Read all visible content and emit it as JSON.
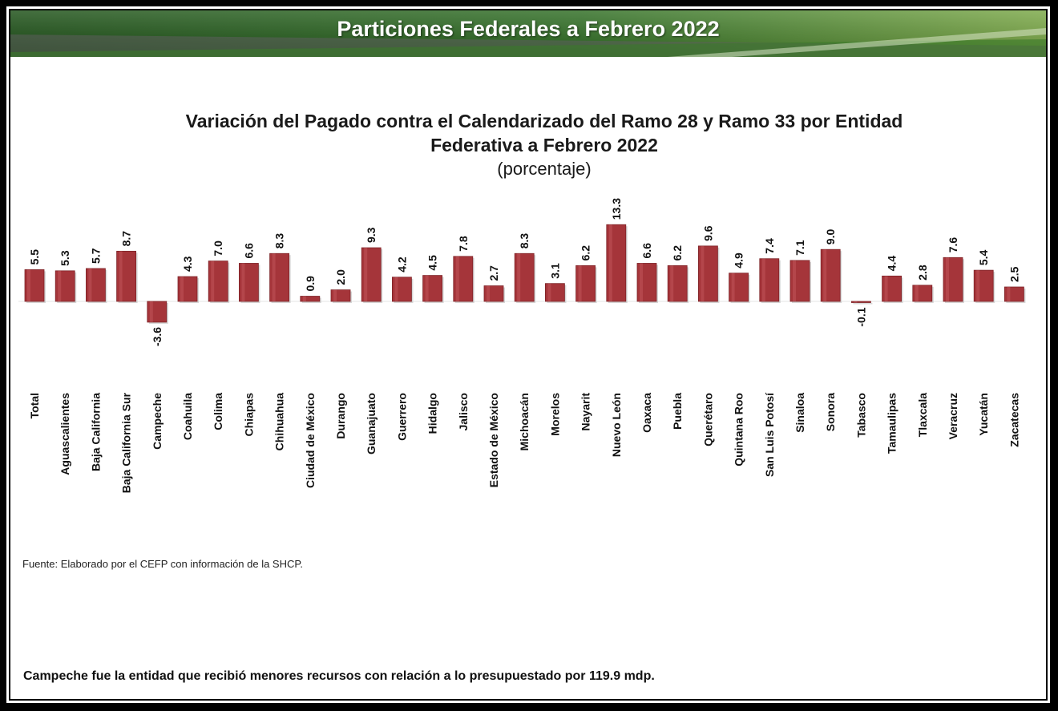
{
  "banner": {
    "title": "Particiones Federales a Febrero 2022",
    "colors": {
      "green_dark": "#1f5a18",
      "green_light": "#6d9f3a",
      "gray": "#6a6a6a"
    }
  },
  "chart_data": {
    "type": "bar",
    "title_line1": "Variación del Pagado contra el Calendarizado del Ramo 28 y Ramo 33 por Entidad",
    "title_line2": "Federativa a Febrero 2022",
    "subtitle": "(porcentaje)",
    "categories": [
      "Total",
      "Aguascalientes",
      "Baja California",
      "Baja California Sur",
      "Campeche",
      "Coahuila",
      "Colima",
      "Chiapas",
      "Chihuahua",
      "Ciudad de México",
      "Durango",
      "Guanajuato",
      "Guerrero",
      "Hidalgo",
      "Jalisco",
      "Estado de México",
      "Michoacán",
      "Morelos",
      "Nayarit",
      "Nuevo León",
      "Oaxaca",
      "Puebla",
      "Querétaro",
      "Quintana Roo",
      "San Luis Potosí",
      "Sinaloa",
      "Sonora",
      "Tabasco",
      "Tamaulipas",
      "Tlaxcala",
      "Veracruz",
      "Yucatán",
      "Zacatecas"
    ],
    "values": [
      5.5,
      5.3,
      5.7,
      8.7,
      -3.6,
      4.3,
      7.0,
      6.6,
      8.3,
      0.9,
      2.0,
      9.3,
      4.2,
      4.5,
      7.8,
      2.7,
      8.3,
      3.1,
      6.2,
      13.3,
      6.6,
      6.2,
      9.6,
      4.9,
      7.4,
      7.1,
      9.0,
      -0.1,
      4.4,
      2.8,
      7.6,
      5.4,
      2.5
    ],
    "value_labels": [
      "5.5",
      "5.3",
      "5.7",
      "8.7",
      "-3.6",
      "4.3",
      "7.0",
      "6.6",
      "8.3",
      "0.9",
      "2.0",
      "9.3",
      "4.2",
      "4.5",
      "7.8",
      "2.7",
      "8.3",
      "3.1",
      "6.2",
      "13.3",
      "6.6",
      "6.2",
      "9.6",
      "4.9",
      "7.4",
      "7.1",
      "9.0",
      "-0.1",
      "4.4",
      "2.8",
      "7.6",
      "5.4",
      "2.5"
    ],
    "bar_color": "#a5353a",
    "bar_highlight": "#c4585b",
    "grid": false
  },
  "footer": {
    "source": "Fuente: Elaborado por el CEFP con información de la SHCP.",
    "note": "Campeche fue la entidad que recibió menores recursos con relación a lo presupuestado por 119.9 mdp."
  }
}
